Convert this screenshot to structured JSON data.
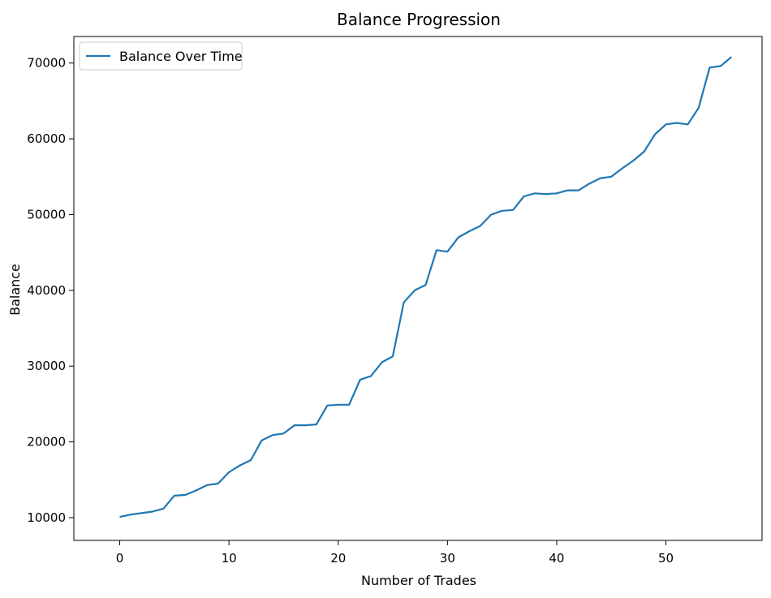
{
  "chart_data": {
    "type": "line",
    "title": "Balance Progression",
    "xlabel": "Number of Trades",
    "ylabel": "Balance",
    "xlim": [
      -4.2,
      58.8
    ],
    "ylim": [
      7000,
      73500
    ],
    "xticks": [
      0,
      10,
      20,
      30,
      40,
      50
    ],
    "yticks": [
      10000,
      20000,
      30000,
      40000,
      50000,
      60000,
      70000
    ],
    "grid": false,
    "legend_position": "top-left",
    "series": [
      {
        "name": "Balance Over Time",
        "color": "#1f77b4",
        "x": [
          0,
          1,
          2,
          3,
          4,
          5,
          6,
          7,
          8,
          9,
          10,
          11,
          12,
          13,
          14,
          15,
          16,
          17,
          18,
          19,
          20,
          21,
          22,
          23,
          24,
          25,
          26,
          27,
          28,
          29,
          30,
          31,
          32,
          33,
          34,
          35,
          36,
          37,
          38,
          39,
          40,
          41,
          42,
          43,
          44,
          45,
          46,
          47,
          48,
          49,
          50,
          51,
          52,
          53,
          54,
          55,
          56
        ],
        "values": [
          10100,
          10400,
          10600,
          10800,
          11200,
          12900,
          13000,
          13600,
          14300,
          14500,
          16000,
          16900,
          17600,
          20200,
          20900,
          21100,
          22200,
          22200,
          22300,
          24800,
          24900,
          24900,
          28200,
          28700,
          30500,
          31300,
          38400,
          40000,
          40700,
          45300,
          45100,
          47000,
          47800,
          48500,
          50000,
          50500,
          50600,
          52400,
          52800,
          52700,
          52800,
          53200,
          53200,
          54100,
          54800,
          55000,
          56100,
          57100,
          58300,
          60600,
          61900,
          62100,
          61900,
          64100,
          69400,
          69600,
          70800
        ]
      }
    ]
  }
}
